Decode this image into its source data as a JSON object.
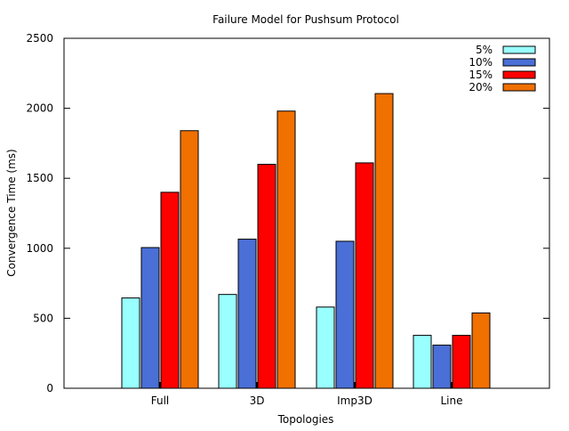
{
  "chart_data": {
    "type": "bar",
    "title": "Failure Model for Pushsum Protocol",
    "xlabel": "Topologies",
    "ylabel": "Convergence Time (ms)",
    "ylim": [
      0,
      2500
    ],
    "yticks": [
      0,
      500,
      1000,
      1500,
      2000,
      2500
    ],
    "grid": false,
    "legend_position": "top-right",
    "categories": [
      "Full",
      "3D",
      "Imp3D",
      "Line"
    ],
    "series": [
      {
        "name": "5%",
        "color": "#99ffff",
        "values": [
          645,
          670,
          580,
          378
        ]
      },
      {
        "name": "10%",
        "color": "#4a6fd6",
        "values": [
          1005,
          1065,
          1050,
          308
        ]
      },
      {
        "name": "15%",
        "color": "#ff0000",
        "values": [
          1400,
          1600,
          1610,
          378
        ]
      },
      {
        "name": "20%",
        "color": "#f07000",
        "values": [
          1840,
          1980,
          2105,
          538
        ]
      }
    ]
  }
}
